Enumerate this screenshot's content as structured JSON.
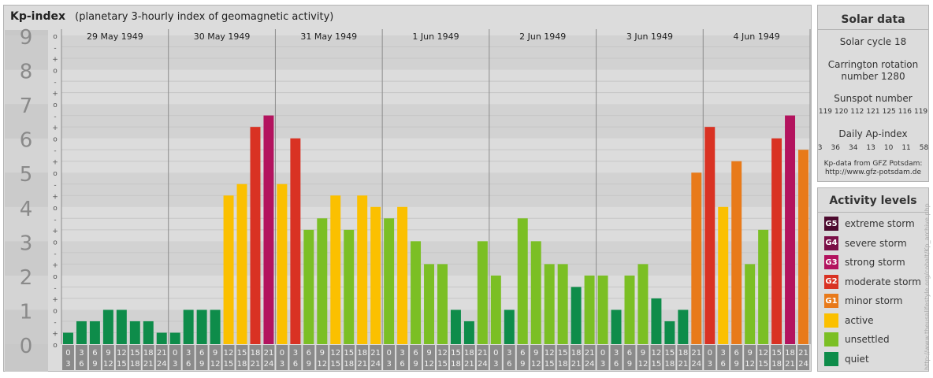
{
  "header": {
    "title": "Kp-index",
    "subtitle": "(planetary 3-hourly index of geomagnetic activity)"
  },
  "chart_data": {
    "type": "bar",
    "ylim": [
      0,
      9
    ],
    "y_ticks": [
      "0",
      "1",
      "2",
      "3",
      "4",
      "5",
      "6",
      "7",
      "8",
      "9"
    ],
    "minor_tick_marks": [
      "-",
      "o",
      "+"
    ],
    "days": [
      "29 May 1949",
      "30 May 1949",
      "31 May 1949",
      "1 Jun 1949",
      "2 Jun 1949",
      "3 Jun 1949",
      "4 Jun 1949"
    ],
    "interval_start_hours": [
      "0",
      "3",
      "6",
      "9",
      "12",
      "15",
      "18",
      "21"
    ],
    "interval_end_hours": [
      "3",
      "6",
      "9",
      "12",
      "15",
      "18",
      "21",
      "24"
    ],
    "values": [
      0.333,
      0.667,
      0.667,
      1.0,
      1.0,
      0.667,
      0.667,
      0.333,
      0.333,
      1.0,
      1.0,
      1.0,
      4.333,
      4.667,
      6.333,
      6.667,
      4.667,
      6.0,
      3.333,
      3.667,
      4.333,
      3.333,
      4.333,
      4.0,
      3.667,
      4.0,
      3.0,
      2.333,
      2.333,
      1.0,
      0.667,
      3.0,
      2.0,
      1.0,
      3.667,
      3.0,
      2.333,
      2.333,
      1.667,
      2.0,
      2.0,
      1.0,
      2.0,
      2.333,
      1.333,
      0.667,
      1.0,
      5.0,
      6.333,
      4.0,
      5.333,
      2.333,
      3.333,
      6.0,
      6.667,
      5.667
    ],
    "color_scale": [
      {
        "min": 0,
        "max": 2,
        "color": "#0e8c4a"
      },
      {
        "min": 2,
        "max": 4,
        "color": "#7bbf24"
      },
      {
        "min": 4,
        "max": 5,
        "color": "#fbc000"
      },
      {
        "min": 5,
        "max": 6,
        "color": "#e87a1a"
      },
      {
        "min": 6,
        "max": 6.5,
        "color": "#d93223"
      },
      {
        "min": 6.5,
        "max": 10,
        "color": "#b3135e"
      }
    ],
    "grid": true
  },
  "solar_data": {
    "heading": "Solar data",
    "solar_cycle": "Solar cycle 18",
    "carrington_line1": "Carrington rotation",
    "carrington_line2": "number 1280",
    "sunspot_heading": "Sunspot number",
    "sunspot_numbers": [
      "119",
      "120",
      "112",
      "121",
      "125",
      "116",
      "119"
    ],
    "ap_heading": "Daily Ap-index",
    "ap_values": [
      "3",
      "36",
      "34",
      "13",
      "10",
      "11",
      "58"
    ],
    "source_line1": "Kp-data from GFZ Potsdam:",
    "source_line2": "http://www.gfz-potsdam.de"
  },
  "activity_levels": {
    "heading": "Activity levels",
    "items": [
      {
        "badge": "G5",
        "label": "extreme storm",
        "color": "#4d0a2e"
      },
      {
        "badge": "G4",
        "label": "severe storm",
        "color": "#7b0f47"
      },
      {
        "badge": "G3",
        "label": "strong storm",
        "color": "#b3135e"
      },
      {
        "badge": "G2",
        "label": "moderate storm",
        "color": "#d93223"
      },
      {
        "badge": "G1",
        "label": "minor storm",
        "color": "#e87a1a"
      },
      {
        "badge": "",
        "label": "active",
        "color": "#fbc000"
      },
      {
        "badge": "",
        "label": "unsettled",
        "color": "#7bbf24"
      },
      {
        "badge": "",
        "label": "quiet",
        "color": "#0e8c4a"
      }
    ]
  },
  "credit": "http://www.theusalifestyle.org/cobalt/Kp_archive.php"
}
